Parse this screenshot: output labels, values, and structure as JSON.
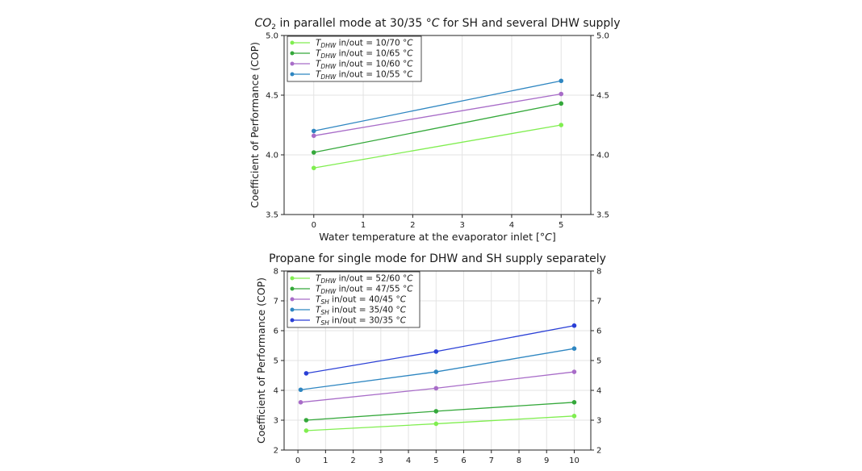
{
  "chart_data": [
    {
      "type": "line",
      "title": "CO2 in parallel mode at 30/35 °C for SH and several DHW supply",
      "title_parts": {
        "pre": "CO",
        "sub": "2",
        "mid": " in parallel mode at 30/35 ",
        "unit": "°C",
        "post": " for SH and several DHW supply"
      },
      "xlabel": "Water temperature at the evaporator inlet [°C]",
      "xlabel_parts": {
        "pre": "Water temperature at the evaporator inlet [",
        "unit": "°C",
        "post": "]"
      },
      "ylabel": "Coefficient of Performance (COP)",
      "xlim": [
        -0.6,
        5.6
      ],
      "ylim": [
        3.5,
        5.0
      ],
      "xticks": [
        "0",
        "1",
        "2",
        "3",
        "4",
        "5"
      ],
      "xtick_values": [
        0,
        1,
        2,
        3,
        4,
        5
      ],
      "yticks": [
        "3.5",
        "4.0",
        "4.5",
        "5.0"
      ],
      "ytick_values": [
        3.5,
        4.0,
        4.5,
        5.0
      ],
      "right_yticks": [
        "3.5",
        "4.0",
        "4.5",
        "5.0"
      ],
      "grid": true,
      "legend_position": "top-left",
      "series": [
        {
          "name": "T_DHW in/out = 10/70 °C",
          "sym": "T",
          "sub": "DHW",
          "label": " in/out = 10/70 ",
          "unit": "°C",
          "color": "#80ee50",
          "x": [
            0,
            5
          ],
          "values": [
            3.89,
            4.25
          ]
        },
        {
          "name": "T_DHW in/out = 10/65 °C",
          "sym": "T",
          "sub": "DHW",
          "label": " in/out = 10/65 ",
          "unit": "°C",
          "color": "#34a83a",
          "x": [
            0,
            5
          ],
          "values": [
            4.02,
            4.43
          ]
        },
        {
          "name": "T_DHW in/out = 10/60 °C",
          "sym": "T",
          "sub": "DHW",
          "label": " in/out = 10/60 ",
          "unit": "°C",
          "color": "#a86cc8",
          "x": [
            0,
            5
          ],
          "values": [
            4.16,
            4.51
          ]
        },
        {
          "name": "T_DHW in/out = 10/55 °C",
          "sym": "T",
          "sub": "DHW",
          "label": " in/out = 10/55 ",
          "unit": "°C",
          "color": "#2e86c1",
          "x": [
            0,
            5
          ],
          "values": [
            4.2,
            4.62
          ]
        }
      ]
    },
    {
      "type": "line",
      "title": "Propane for single mode for DHW and SH supply separately",
      "xlabel": "",
      "ylabel": "Coefficient of Performance (COP)",
      "xlim": [
        -0.5,
        10.6
      ],
      "ylim": [
        2,
        8
      ],
      "xticks": [
        "0",
        "1",
        "2",
        "3",
        "4",
        "5",
        "6",
        "7",
        "8",
        "9",
        "10"
      ],
      "xtick_values": [
        0,
        1,
        2,
        3,
        4,
        5,
        6,
        7,
        8,
        9,
        10
      ],
      "yticks": [
        "2",
        "3",
        "4",
        "5",
        "6",
        "7",
        "8"
      ],
      "ytick_values": [
        2,
        3,
        4,
        5,
        6,
        7,
        8
      ],
      "right_yticks": [
        "2",
        "3",
        "4",
        "5",
        "6",
        "7",
        "8"
      ],
      "grid": true,
      "legend_position": "top-left",
      "series": [
        {
          "name": "T_DHW in/out = 52/60 °C",
          "sym": "T",
          "sub": "DHW",
          "label": " in/out = 52/60 ",
          "unit": "°C",
          "color": "#80ee50",
          "x": [
            0.3,
            5,
            10
          ],
          "values": [
            2.65,
            2.88,
            3.14
          ]
        },
        {
          "name": "T_DHW in/out = 47/55 °C",
          "sym": "T",
          "sub": "DHW",
          "label": " in/out = 47/55 ",
          "unit": "°C",
          "color": "#34a83a",
          "x": [
            0.3,
            5,
            10
          ],
          "values": [
            3.0,
            3.3,
            3.6
          ]
        },
        {
          "name": "T_SH in/out = 40/45 °C",
          "sym": "T",
          "sub": "SH",
          "label": " in/out = 40/45 ",
          "unit": "°C",
          "color": "#a86cc8",
          "x": [
            0.1,
            5,
            10
          ],
          "values": [
            3.6,
            4.07,
            4.62
          ]
        },
        {
          "name": "T_SH in/out = 35/40 °C",
          "sym": "T",
          "sub": "SH",
          "label": " in/out = 35/40 ",
          "unit": "°C",
          "color": "#2e86c1",
          "x": [
            0.1,
            5,
            10
          ],
          "values": [
            4.02,
            4.62,
            5.4
          ]
        },
        {
          "name": "T_SH in/out = 30/35 °C",
          "sym": "T",
          "sub": "SH",
          "label": " in/out = 30/35 ",
          "unit": "°C",
          "color": "#2a3fd6",
          "x": [
            0.3,
            5,
            10
          ],
          "values": [
            4.57,
            5.3,
            6.17
          ]
        }
      ]
    }
  ]
}
